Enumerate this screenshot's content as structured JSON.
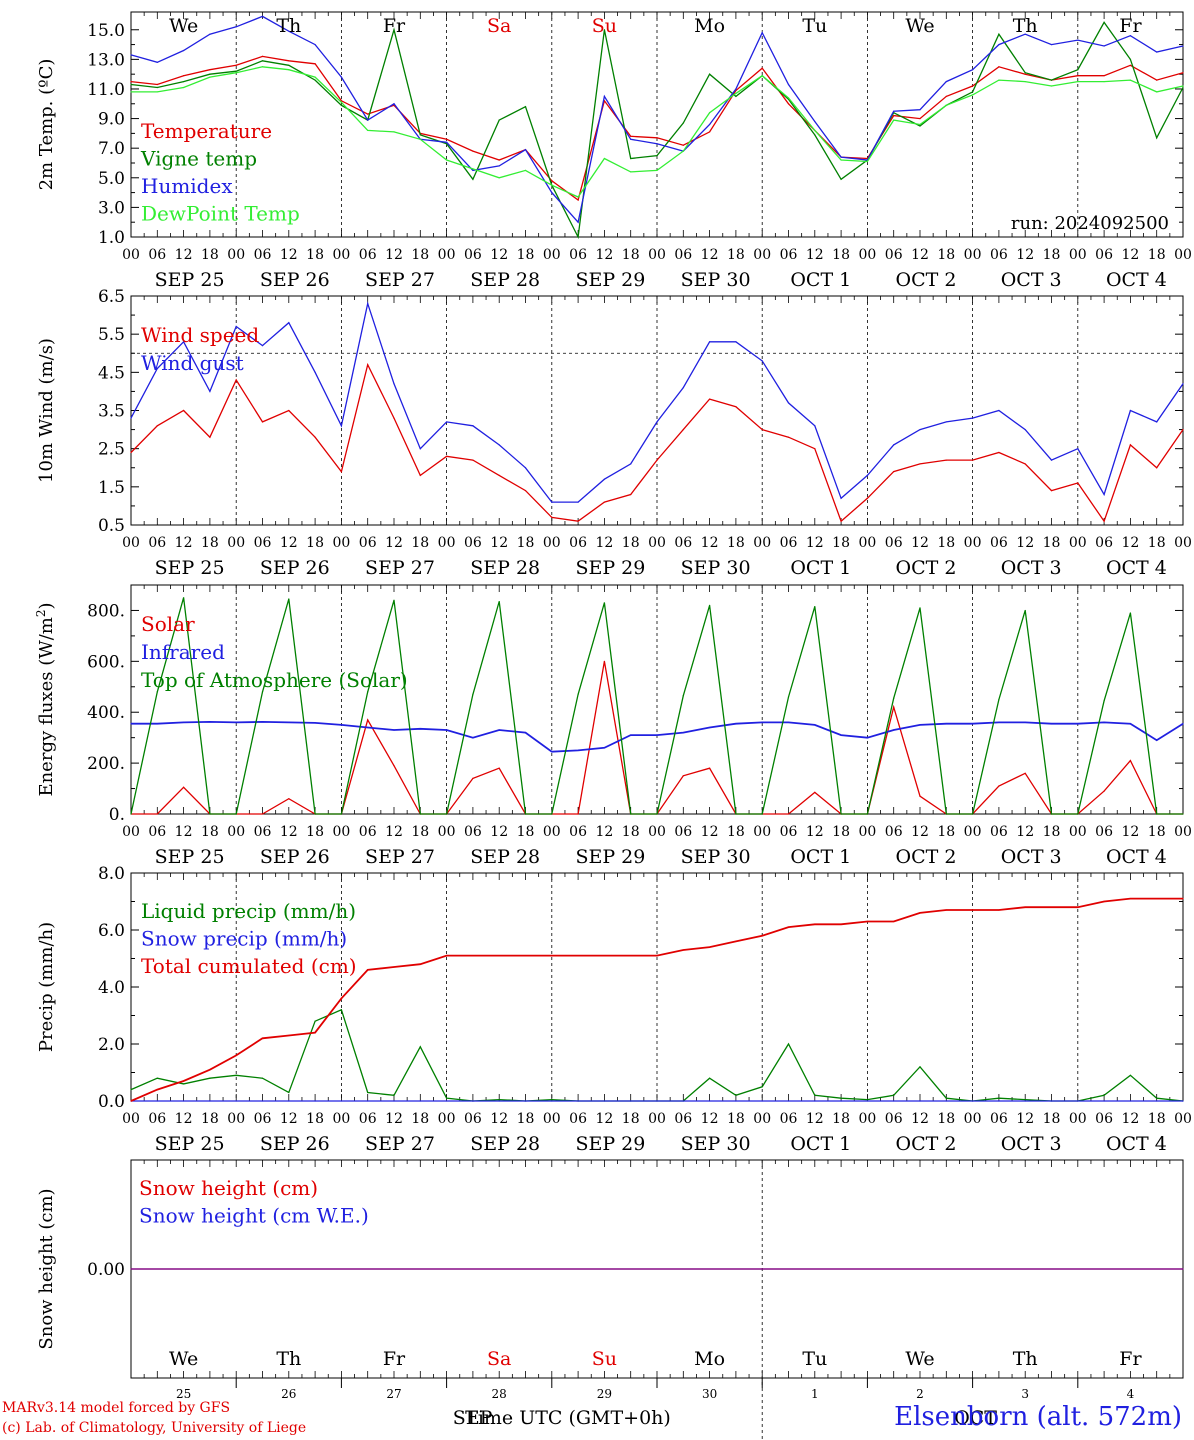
{
  "run_label": "run: 2024092500",
  "day_labels": [
    "We",
    "Th",
    "Fr",
    "Sa",
    "Su",
    "Mo",
    "Tu",
    "We",
    "Th",
    "Fr"
  ],
  "weekend_flags": [
    false,
    false,
    false,
    true,
    true,
    false,
    false,
    false,
    false,
    false
  ],
  "date_labels": [
    "SEP 25",
    "SEP 26",
    "SEP 27",
    "SEP 28",
    "SEP 29",
    "SEP 30",
    "OCT  1",
    "OCT  2",
    "OCT  3",
    "OCT  4"
  ],
  "hour_labels": [
    "00",
    "06",
    "12",
    "18"
  ],
  "bottom_day_numbers": [
    "25",
    "26",
    "27",
    "28",
    "29",
    "30",
    "1",
    "2",
    "3",
    "4"
  ],
  "bottom_month_labels": [
    "SEP",
    "OCT"
  ],
  "x_title": "Time UTC (GMT+0h)",
  "footer": {
    "line1": "MARv3.14 model forced by GFS",
    "line2": "(c) Lab. of Climatology, University of Liege"
  },
  "station": "Elsenborn (alt. 572m)",
  "colors": {
    "red": "#e00000",
    "green": "#008000",
    "blue": "#2020e0",
    "light_green": "#33ee33",
    "weekend": "#e00000",
    "snow_line": "#800080"
  },
  "chart_data": [
    {
      "type": "line",
      "ylabel": "2m Temp. (ºC)",
      "yticks": [
        "1.0",
        "3.0",
        "5.0",
        "7.0",
        "9.0",
        "11.0",
        "13.0",
        "15.0"
      ],
      "ylim": [
        1,
        16.2
      ],
      "hline": null,
      "legend": [
        "Temperature",
        "Vigne temp",
        "Humidex",
        "DewPoint Temp"
      ],
      "x_hours": [
        0,
        6,
        12,
        18,
        24,
        30,
        36,
        42,
        48,
        54,
        60,
        66,
        72,
        78,
        84,
        90,
        96,
        102,
        108,
        114,
        120,
        126,
        132,
        138,
        144,
        150,
        156,
        162,
        168,
        174,
        180,
        186,
        192,
        198,
        204,
        210,
        216,
        222,
        228,
        234,
        240
      ],
      "series": [
        {
          "name": "Temperature",
          "color": "red",
          "values": [
            11.5,
            11.3,
            11.9,
            12.3,
            12.6,
            13.2,
            12.9,
            12.7,
            10.2,
            9.3,
            9.9,
            8,
            7.6,
            6.8,
            6.2,
            6.9,
            4.8,
            3.5,
            10.2,
            7.8,
            7.7,
            7.2,
            8.1,
            10.9,
            12.4,
            10,
            8.2,
            6.4,
            6.3,
            9.2,
            9,
            10.5,
            11.2,
            12.5,
            12,
            11.6,
            11.9,
            11.9,
            12.6,
            11.6,
            12.1
          ]
        },
        {
          "name": "Vigne temp",
          "color": "green",
          "values": [
            11.3,
            11.1,
            11.5,
            12,
            12.2,
            12.9,
            12.6,
            11.6,
            9.9,
            8.9,
            15,
            7.9,
            7.3,
            4.9,
            8.9,
            9.8,
            4.5,
            1,
            15,
            6.3,
            6.5,
            8.7,
            12,
            10.5,
            11.9,
            10.3,
            7.9,
            4.9,
            6.2,
            9.4,
            8.5,
            9.9,
            10.8,
            14.7,
            12.1,
            11.6,
            12.3,
            15.5,
            13,
            7.7,
            11.1
          ]
        },
        {
          "name": "Humidex",
          "color": "blue",
          "values": [
            13.3,
            12.8,
            13.6,
            14.7,
            15.2,
            15.9,
            14.9,
            14,
            11.8,
            8.9,
            10,
            7.6,
            7.4,
            5.5,
            5.8,
            6.9,
            4,
            2,
            10.5,
            7.6,
            7.3,
            6.8,
            8.6,
            11,
            14.8,
            11.3,
            8.8,
            6.4,
            6.2,
            9.5,
            9.6,
            11.5,
            12.3,
            14,
            14.7,
            14,
            14.3,
            13.9,
            14.6,
            13.5,
            13.9
          ]
        },
        {
          "name": "DewPoint Temp",
          "color": "light_green",
          "values": [
            10.8,
            10.8,
            11.1,
            11.8,
            12.1,
            12.5,
            12.3,
            11.8,
            10.1,
            8.2,
            8.1,
            7.6,
            6.2,
            5.6,
            5,
            5.5,
            4.5,
            3.7,
            6.3,
            5.4,
            5.5,
            6.8,
            9.4,
            10.7,
            11.9,
            10.4,
            8.2,
            6.2,
            6.1,
            8.9,
            8.6,
            9.9,
            10.6,
            11.6,
            11.5,
            11.2,
            11.5,
            11.5,
            11.6,
            10.8,
            11.2
          ]
        }
      ]
    },
    {
      "type": "line",
      "ylabel": "10m Wind (m/s)",
      "yticks": [
        "0.5",
        "1.5",
        "2.5",
        "3.5",
        "4.5",
        "5.5",
        "6.5"
      ],
      "ylim": [
        0.5,
        6.5
      ],
      "hline": 5,
      "legend": [
        "Wind speed",
        "Wind gust"
      ],
      "x_hours": [
        0,
        6,
        12,
        18,
        24,
        30,
        36,
        42,
        48,
        54,
        60,
        66,
        72,
        78,
        84,
        90,
        96,
        102,
        108,
        114,
        120,
        126,
        132,
        138,
        144,
        150,
        156,
        162,
        168,
        174,
        180,
        186,
        192,
        198,
        204,
        210,
        216,
        222,
        228,
        234,
        240
      ],
      "series": [
        {
          "name": "Wind speed",
          "color": "red",
          "values": [
            2.4,
            3.1,
            3.5,
            2.8,
            4.3,
            3.2,
            3.5,
            2.8,
            1.9,
            4.7,
            3.3,
            1.8,
            2.3,
            2.2,
            1.8,
            1.4,
            0.7,
            0.6,
            1.1,
            1.3,
            2.2,
            3,
            3.8,
            3.6,
            3,
            2.8,
            2.5,
            0.6,
            1.2,
            1.9,
            2.1,
            2.2,
            2.2,
            2.4,
            2.1,
            1.4,
            1.6,
            0.6,
            2.6,
            2,
            3
          ]
        },
        {
          "name": "Wind gust",
          "color": "blue",
          "values": [
            3.3,
            4.6,
            5.3,
            4,
            5.7,
            5.2,
            5.8,
            4.5,
            3.1,
            6.3,
            4.2,
            2.5,
            3.2,
            3.1,
            2.6,
            2,
            1.1,
            1.1,
            1.7,
            2.1,
            3.2,
            4.1,
            5.3,
            5.3,
            4.8,
            3.7,
            3.1,
            1.2,
            1.8,
            2.6,
            3,
            3.2,
            3.3,
            3.5,
            3,
            2.2,
            2.5,
            1.3,
            3.5,
            3.2,
            4.2
          ]
        }
      ]
    },
    {
      "type": "line",
      "ylabel": "Energy fluxes (W/m²)",
      "yticks": [
        "0.",
        "200.",
        "400.",
        "600.",
        "800."
      ],
      "ylim": [
        0,
        900
      ],
      "hline": null,
      "legend": [
        "Solar",
        "Infrared",
        "Top of Atmosphere (Solar)"
      ],
      "x_hours": [
        0,
        6,
        12,
        18,
        24,
        30,
        36,
        42,
        48,
        54,
        60,
        66,
        72,
        78,
        84,
        90,
        96,
        102,
        108,
        114,
        120,
        126,
        132,
        138,
        144,
        150,
        156,
        162,
        168,
        174,
        180,
        186,
        192,
        198,
        204,
        210,
        216,
        222,
        228,
        234,
        240
      ],
      "series": [
        {
          "name": "Solar",
          "color": "red",
          "values": [
            0,
            0,
            105,
            0,
            0,
            0,
            60,
            0,
            0,
            370,
            190,
            0,
            0,
            140,
            180,
            0,
            0,
            0,
            600,
            0,
            0,
            150,
            180,
            0,
            0,
            0,
            85,
            0,
            0,
            420,
            70,
            0,
            0,
            110,
            160,
            0,
            0,
            90,
            210,
            0,
            0
          ]
        },
        {
          "name": "Infrared",
          "color": "blue",
          "values": [
            355,
            355,
            360,
            362,
            360,
            362,
            360,
            358,
            350,
            340,
            330,
            335,
            330,
            300,
            330,
            320,
            245,
            250,
            260,
            310,
            310,
            320,
            340,
            355,
            360,
            360,
            350,
            310,
            300,
            330,
            350,
            355,
            355,
            360,
            360,
            355,
            355,
            360,
            355,
            290,
            355
          ]
        },
        {
          "name": "Top of Atmosphere (Solar)",
          "color": "green",
          "values": [
            0,
            480,
            850,
            0,
            0,
            480,
            845,
            0,
            0,
            480,
            840,
            0,
            0,
            470,
            835,
            0,
            0,
            470,
            830,
            0,
            0,
            465,
            820,
            0,
            0,
            460,
            815,
            0,
            0,
            455,
            810,
            0,
            0,
            450,
            800,
            0,
            0,
            445,
            790,
            0,
            0
          ]
        }
      ]
    },
    {
      "type": "line",
      "ylabel": "Precip (mm/h)",
      "yticks": [
        "0.0",
        "2.0",
        "4.0",
        "6.0",
        "8.0"
      ],
      "ylim": [
        0,
        8
      ],
      "hline": null,
      "legend": [
        "Liquid precip (mm/h)",
        "Snow precip (mm/h)",
        "Total cumulated (cm)"
      ],
      "x_hours": [
        0,
        6,
        12,
        18,
        24,
        30,
        36,
        42,
        48,
        54,
        60,
        66,
        72,
        78,
        84,
        90,
        96,
        102,
        108,
        114,
        120,
        126,
        132,
        138,
        144,
        150,
        156,
        162,
        168,
        174,
        180,
        186,
        192,
        198,
        204,
        210,
        216,
        222,
        228,
        234,
        240
      ],
      "series": [
        {
          "name": "Liquid precip (mm/h)",
          "color": "green",
          "values": [
            0.4,
            0.8,
            0.6,
            0.8,
            0.9,
            0.8,
            0.3,
            2.8,
            3.2,
            0.3,
            0.2,
            1.9,
            0.1,
            0,
            0.05,
            0,
            0.05,
            0,
            0,
            0,
            0,
            0,
            0.8,
            0.2,
            0.5,
            2,
            0.2,
            0.1,
            0.05,
            0.2,
            1.2,
            0.1,
            0,
            0.1,
            0.05,
            0,
            0,
            0.2,
            0.9,
            0.1,
            0
          ]
        },
        {
          "name": "Snow precip (mm/h)",
          "color": "blue",
          "values": [
            0,
            0,
            0,
            0,
            0,
            0,
            0,
            0,
            0,
            0,
            0,
            0,
            0,
            0,
            0,
            0,
            0,
            0,
            0,
            0,
            0,
            0,
            0,
            0,
            0,
            0,
            0,
            0,
            0,
            0,
            0,
            0,
            0,
            0,
            0,
            0,
            0,
            0,
            0,
            0,
            0
          ]
        },
        {
          "name": "Total cumulated (cm)",
          "color": "red",
          "values": [
            0,
            0.4,
            0.7,
            1.1,
            1.6,
            2.2,
            2.3,
            2.4,
            3.6,
            4.6,
            4.7,
            4.8,
            5.1,
            5.1,
            5.1,
            5.1,
            5.1,
            5.1,
            5.1,
            5.1,
            5.1,
            5.3,
            5.4,
            5.6,
            5.8,
            6.1,
            6.2,
            6.2,
            6.3,
            6.3,
            6.6,
            6.7,
            6.7,
            6.7,
            6.8,
            6.8,
            6.8,
            7,
            7.1,
            7.1,
            7.1
          ]
        }
      ]
    },
    {
      "type": "line",
      "ylabel": "Snow height (cm)",
      "yticks": [
        "0.00"
      ],
      "ylim": [
        -1,
        1
      ],
      "hline": null,
      "legend": [
        "Snow height (cm)",
        "Snow height (cm W.E.)"
      ],
      "x_hours": [
        0,
        240
      ],
      "series": [
        {
          "name": "Snow height (cm)",
          "color": "red",
          "values": [
            0,
            0
          ]
        },
        {
          "name": "Snow height (cm W.E.)",
          "color": "blue",
          "values": [
            0,
            0
          ]
        }
      ]
    }
  ]
}
